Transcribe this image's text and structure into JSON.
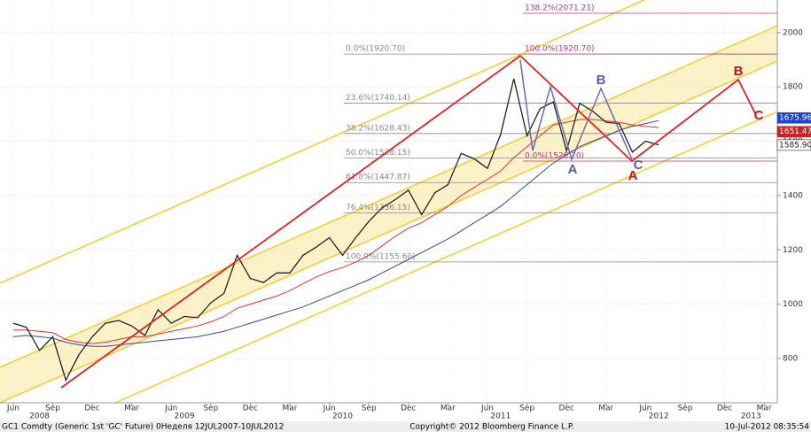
{
  "chart_data": {
    "type": "line",
    "x": [
      "2008-06",
      "2008-07",
      "2008-08",
      "2008-09",
      "2008-10",
      "2008-11",
      "2008-12",
      "2009-01",
      "2009-02",
      "2009-03",
      "2009-04",
      "2009-05",
      "2009-06",
      "2009-07",
      "2009-08",
      "2009-09",
      "2009-10",
      "2009-11",
      "2009-12",
      "2010-01",
      "2010-02",
      "2010-03",
      "2010-04",
      "2010-05",
      "2010-06",
      "2010-07",
      "2010-08",
      "2010-09",
      "2010-10",
      "2010-11",
      "2010-12",
      "2011-01",
      "2011-02",
      "2011-03",
      "2011-04",
      "2011-05",
      "2011-06",
      "2011-07",
      "2011-08",
      "2011-09",
      "2011-10",
      "2011-11",
      "2011-12",
      "2012-01",
      "2012-02",
      "2012-03",
      "2012-04",
      "2012-05",
      "2012-06",
      "2012-07"
    ],
    "series": [
      {
        "color": "#222222",
        "values": [
          930,
          915,
          830,
          880,
          720,
          815,
          880,
          930,
          940,
          920,
          885,
          980,
          930,
          955,
          950,
          1005,
          1040,
          1180,
          1095,
          1080,
          1115,
          1115,
          1180,
          1210,
          1245,
          1180,
          1245,
          1305,
          1355,
          1385,
          1420,
          1330,
          1410,
          1440,
          1555,
          1535,
          1500,
          1625,
          1830,
          1620,
          1720,
          1745,
          1565,
          1740,
          1710,
          1670,
          1665,
          1560,
          1600,
          1586
        ]
      },
      {
        "color": "#e03030",
        "values": [
          905,
          905,
          900,
          895,
          870,
          860,
          855,
          860,
          870,
          880,
          880,
          890,
          900,
          910,
          920,
          935,
          955,
          985,
          1000,
          1015,
          1030,
          1050,
          1075,
          1100,
          1120,
          1135,
          1155,
          1180,
          1215,
          1250,
          1280,
          1300,
          1330,
          1360,
          1400,
          1430,
          1460,
          1490,
          1540,
          1580,
          1620,
          1660,
          1670,
          1680,
          1680,
          1675,
          1670,
          1660,
          1655,
          1651
        ]
      },
      {
        "color": "#3344aa",
        "values": [
          880,
          885,
          880,
          875,
          860,
          850,
          845,
          845,
          850,
          855,
          860,
          865,
          870,
          875,
          880,
          890,
          900,
          915,
          930,
          945,
          960,
          975,
          990,
          1010,
          1030,
          1050,
          1070,
          1090,
          1115,
          1140,
          1165,
          1190,
          1215,
          1240,
          1270,
          1300,
          1330,
          1360,
          1400,
          1440,
          1480,
          1520,
          1550,
          1580,
          1600,
          1620,
          1640,
          1655,
          1665,
          1676
        ]
      }
    ],
    "xlim": [
      "2008-05",
      "2013-04"
    ],
    "xticks": [
      {
        "value": "2008-06",
        "label": "Jun"
      },
      {
        "value": "2008-09",
        "label": "Sep"
      },
      {
        "value": "2008-12",
        "label": "Dec"
      },
      {
        "value": "2009-03",
        "label": "Mar"
      },
      {
        "value": "2009-06",
        "label": "Jun"
      },
      {
        "value": "2009-09",
        "label": "Sep"
      },
      {
        "value": "2009-12",
        "label": "Dec"
      },
      {
        "value": "2010-03",
        "label": "Mar"
      },
      {
        "value": "2010-06",
        "label": "Jun"
      },
      {
        "value": "2010-09",
        "label": "Sep"
      },
      {
        "value": "2010-12",
        "label": "Dec"
      },
      {
        "value": "2011-03",
        "label": "Mar"
      },
      {
        "value": "2011-06",
        "label": "Jun"
      },
      {
        "value": "2011-09",
        "label": "Sep"
      },
      {
        "value": "2011-12",
        "label": "Dec"
      },
      {
        "value": "2012-03",
        "label": "Mar"
      },
      {
        "value": "2012-06",
        "label": "Jun"
      },
      {
        "value": "2012-09",
        "label": "Sep"
      },
      {
        "value": "2012-12",
        "label": "Dec"
      },
      {
        "value": "2013-03",
        "label": "Mar"
      }
    ],
    "year_labels": [
      {
        "value": "2008-08",
        "label": "2008"
      },
      {
        "value": "2009-07",
        "label": "2009"
      },
      {
        "value": "2010-07",
        "label": "2010"
      },
      {
        "value": "2011-07",
        "label": "2011"
      },
      {
        "value": "2012-07",
        "label": "2012"
      },
      {
        "value": "2013-02",
        "label": "2013"
      }
    ],
    "ylim": [
      637,
      2120
    ],
    "yticks": [
      800,
      1000,
      1200,
      1400,
      1600,
      1800,
      2000
    ],
    "fib_retracement": {
      "color": "#888888",
      "levels": [
        {
          "value": 1920.7,
          "label": "0.0%(1920.70)"
        },
        {
          "value": 1740.14,
          "label": "23.6%(1740.14)"
        },
        {
          "value": 1628.43,
          "label": "38.2%(1628.43)"
        },
        {
          "value": 1538.15,
          "label": "50.0%(1538.15)"
        },
        {
          "value": 1447.87,
          "label": "61.8%(1447.87)"
        },
        {
          "value": 1336.15,
          "label": "76.4%(1336.15)"
        },
        {
          "value": 1155.6,
          "label": "100.0%(1155.60)"
        }
      ]
    },
    "fib_extension": {
      "color": "#c0307a",
      "levels": [
        {
          "value": 2071.21,
          "label": "138.2%(2071.21)"
        },
        {
          "value": 1920.7,
          "label": "100.0%(1920.70)"
        },
        {
          "value": 1526.7,
          "label": "0.0%(1526.70)"
        }
      ]
    },
    "price_tags": [
      {
        "value": 1675.96,
        "label": "1675.96",
        "color": "#2244cc"
      },
      {
        "value": 1651.47,
        "label": "1651.47",
        "color": "#cc2222"
      },
      {
        "value": 1585.9,
        "label": "1585.90",
        "color": "#222222"
      }
    ],
    "annotations": [
      {
        "text": "A",
        "color": "#5a5aa8"
      },
      {
        "text": "B",
        "color": "#5a5aa8"
      },
      {
        "text": "C",
        "color": "#5a5aa8"
      },
      {
        "text": "A",
        "color": "#cc1111"
      },
      {
        "text": "B",
        "color": "#cc1111"
      },
      {
        "text": "C",
        "color": "#cc1111"
      }
    ],
    "footer_left": "GC1 Comdty (Generic 1st 'GC' Future) 0Неделя 12JUL2007-10JUL2012",
    "footer_center": "Copyright© 2012 Bloomberg Finance L.P.",
    "footer_right": "10-Jul-2012 08:35:54"
  }
}
